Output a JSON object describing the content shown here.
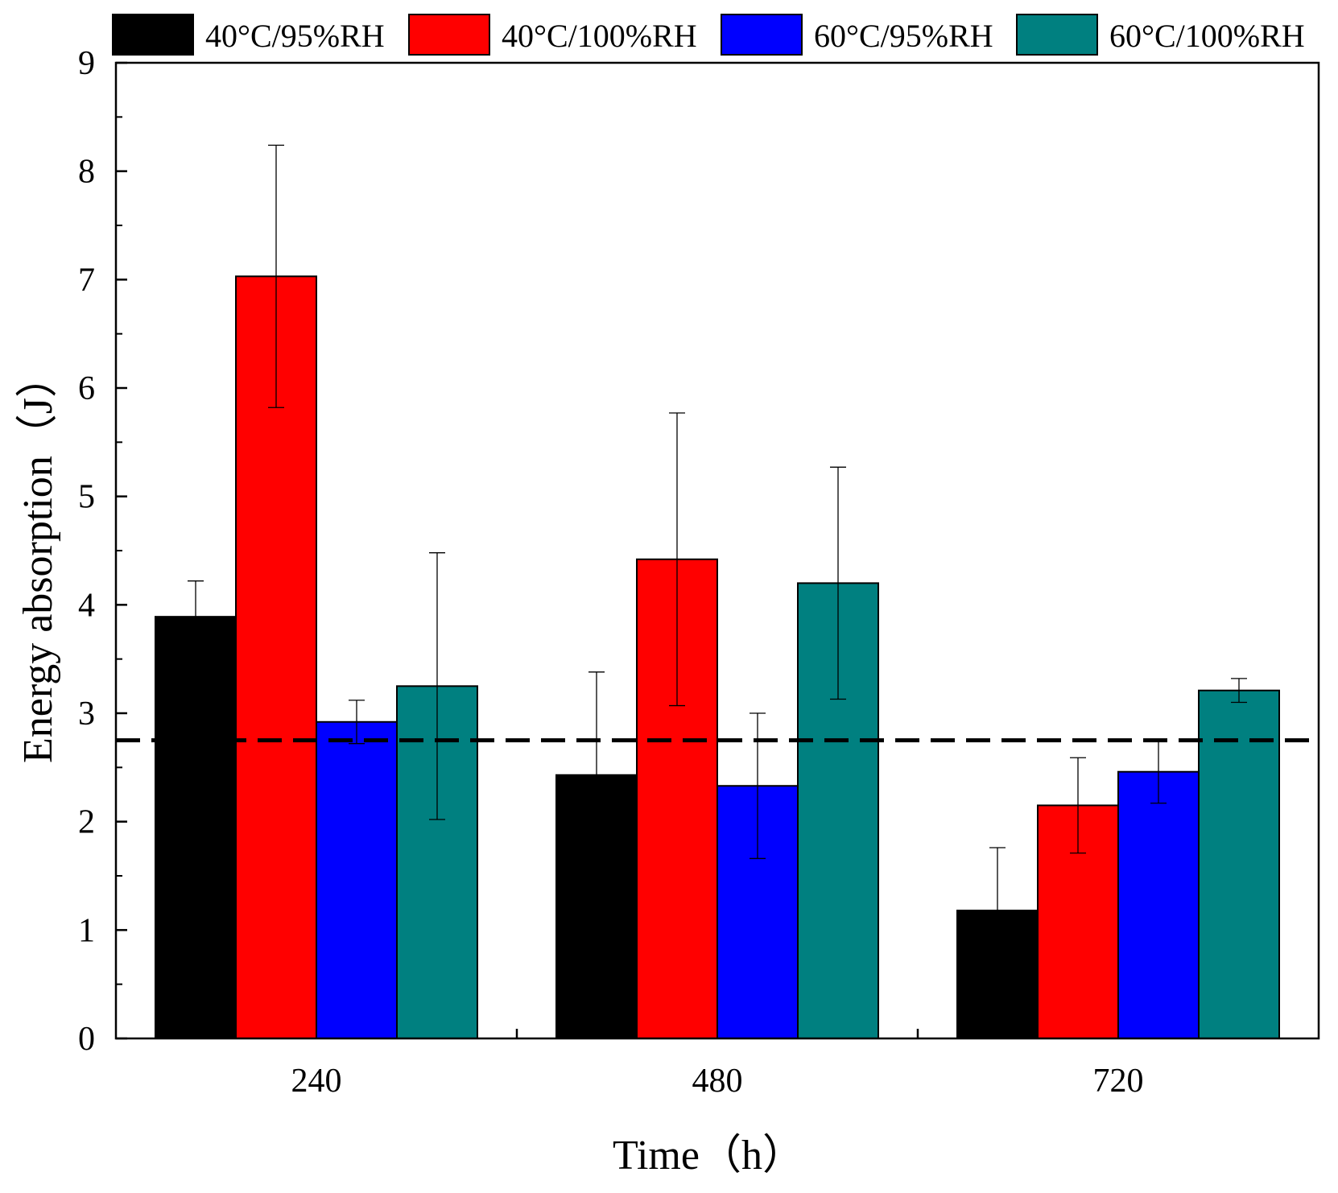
{
  "chart_data": {
    "type": "bar",
    "title": "",
    "xlabel": "Time（h）",
    "ylabel": "Energy absorption（J）",
    "categories": [
      "240",
      "480",
      "720"
    ],
    "ylim": [
      0,
      9
    ],
    "yticks": [
      "0",
      "1",
      "2",
      "3",
      "4",
      "5",
      "6",
      "7",
      "8",
      "9"
    ],
    "series": [
      {
        "name": "40°C/95%RH",
        "color": "#000000",
        "values": [
          3.89,
          2.43,
          1.18
        ],
        "errors": [
          0.33,
          0.95,
          0.58
        ]
      },
      {
        "name": "40°C/100%RH",
        "color": "#ff0000",
        "values": [
          7.03,
          4.42,
          2.15
        ],
        "errors": [
          1.21,
          1.35,
          0.44
        ]
      },
      {
        "name": "60°C/95%RH",
        "color": "#0000ff",
        "values": [
          2.92,
          2.33,
          2.46
        ],
        "errors": [
          0.2,
          0.67,
          0.29
        ]
      },
      {
        "name": "60°C/100%RH",
        "color": "#008080",
        "values": [
          3.25,
          4.2,
          3.21
        ],
        "errors": [
          1.23,
          1.07,
          0.11
        ]
      }
    ],
    "reference_line": {
      "y": 2.75,
      "style": "dashed",
      "color": "#000000"
    },
    "legend_position": "top",
    "grid": false
  }
}
